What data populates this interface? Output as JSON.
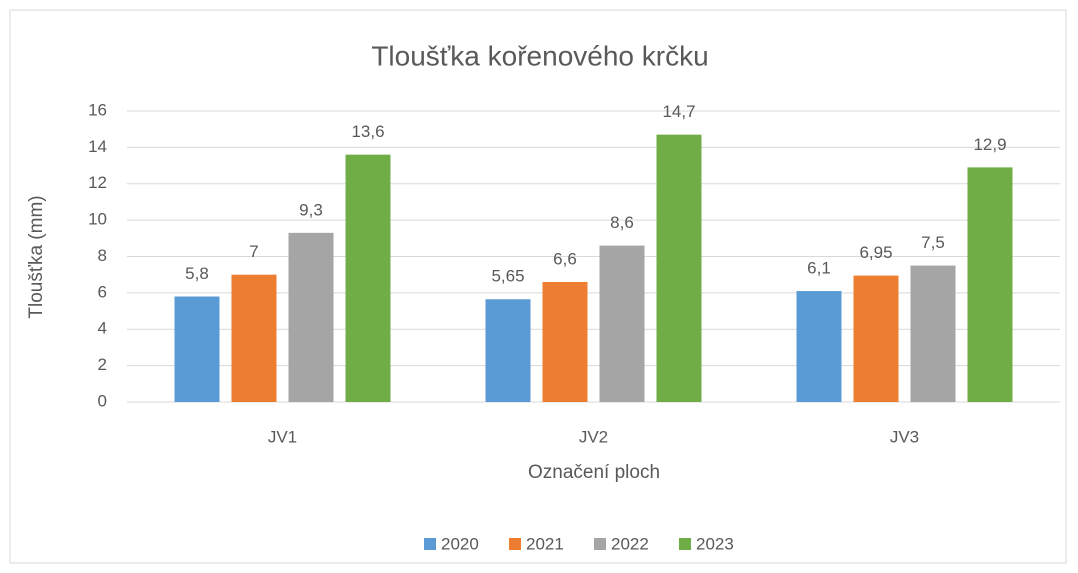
{
  "chart_data": {
    "type": "bar",
    "title": "Tloušťka kořenového krčku",
    "x_label": "Označení ploch",
    "y_label": "Tloušťka (mm)",
    "categories": [
      "JV1",
      "JV2",
      "JV3"
    ],
    "series": [
      {
        "name": "2020",
        "color": "#5b9bd5",
        "values": [
          5.8,
          5.65,
          6.1
        ],
        "value_labels": [
          "5,8",
          "5,65",
          "6,1"
        ]
      },
      {
        "name": "2021",
        "color": "#ed7d31",
        "values": [
          7,
          6.6,
          6.95
        ],
        "value_labels": [
          "7",
          "6,6",
          "6,95"
        ]
      },
      {
        "name": "2022",
        "color": "#a5a5a5",
        "values": [
          9.3,
          8.6,
          7.5
        ],
        "value_labels": [
          "9,3",
          "8,6",
          "7,5"
        ]
      },
      {
        "name": "2023",
        "color": "#70ad47",
        "values": [
          13.6,
          14.7,
          12.9
        ],
        "value_labels": [
          "13,6",
          "14,7",
          "12,9"
        ]
      }
    ],
    "ylim": [
      0,
      16
    ],
    "yticks": [
      0,
      2,
      4,
      6,
      8,
      10,
      12,
      14,
      16
    ],
    "grid": true,
    "legend": "bottom"
  }
}
